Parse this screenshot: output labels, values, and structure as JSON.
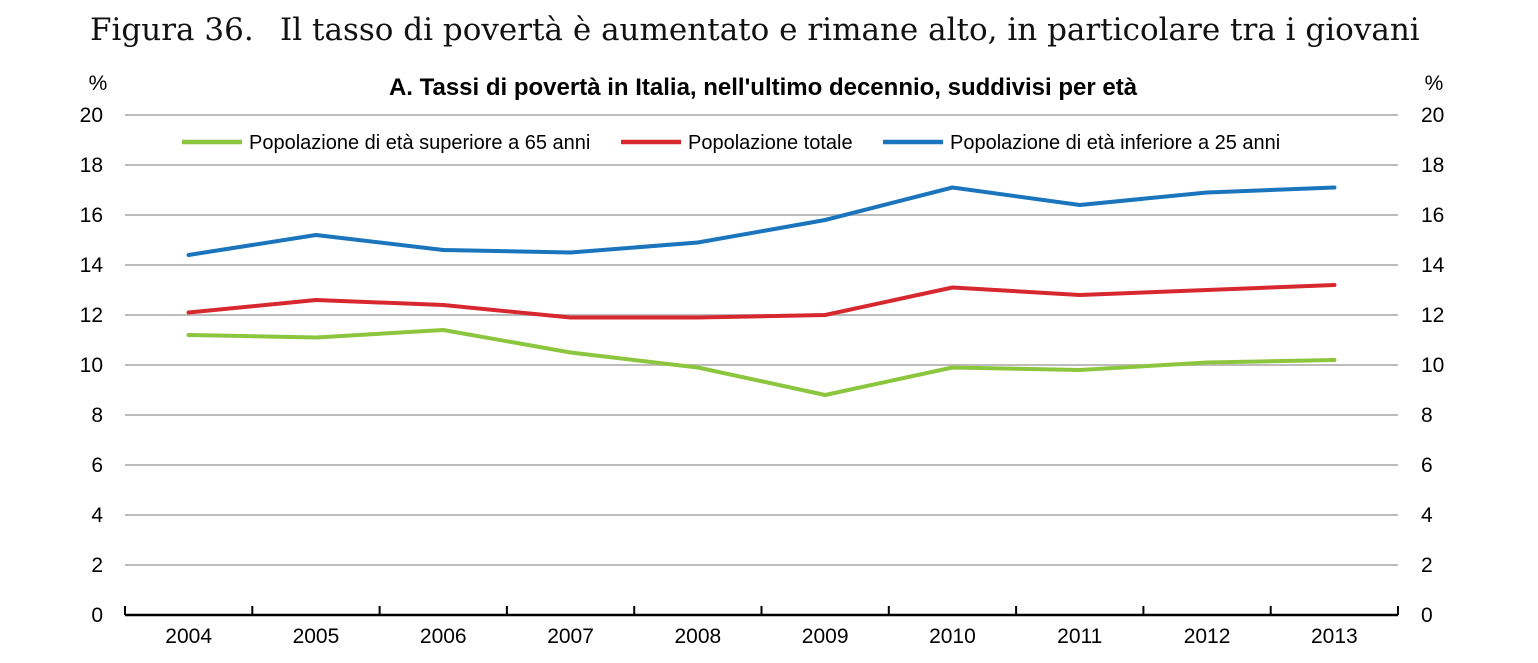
{
  "figure": {
    "label": "Figura 36.",
    "title": "Il tasso di povertà è aumentato e rimane alto, in particolare tra i giovani"
  },
  "chart_data": {
    "type": "line",
    "title": "A. Tassi di povertà in Italia, nell'ultimo decennio, suddivisi per età",
    "unit_left": "%",
    "unit_right": "%",
    "categories": [
      "2004",
      "2005",
      "2006",
      "2007",
      "2008",
      "2009",
      "2010",
      "2011",
      "2012",
      "2013"
    ],
    "ylim": [
      0,
      20
    ],
    "yticks": [
      0,
      2,
      4,
      6,
      8,
      10,
      12,
      14,
      16,
      18,
      20
    ],
    "grid": true,
    "legend_position": "top",
    "series": [
      {
        "name": "Popolazione di età superiore a 65 anni",
        "color": "#8cc63f",
        "values": [
          11.2,
          11.1,
          11.4,
          10.5,
          9.9,
          8.8,
          9.9,
          9.8,
          10.1,
          10.2
        ]
      },
      {
        "name": "Popolazione totale",
        "color": "#d7282f",
        "values": [
          12.1,
          12.6,
          12.4,
          11.9,
          11.9,
          12.0,
          13.1,
          12.8,
          13.0,
          13.2
        ]
      },
      {
        "name": "Popolazione di età inferiore a 25 anni",
        "color": "#1a75bc",
        "values": [
          14.4,
          15.2,
          14.6,
          14.5,
          14.9,
          15.8,
          17.1,
          16.4,
          16.9,
          17.1
        ]
      }
    ]
  }
}
